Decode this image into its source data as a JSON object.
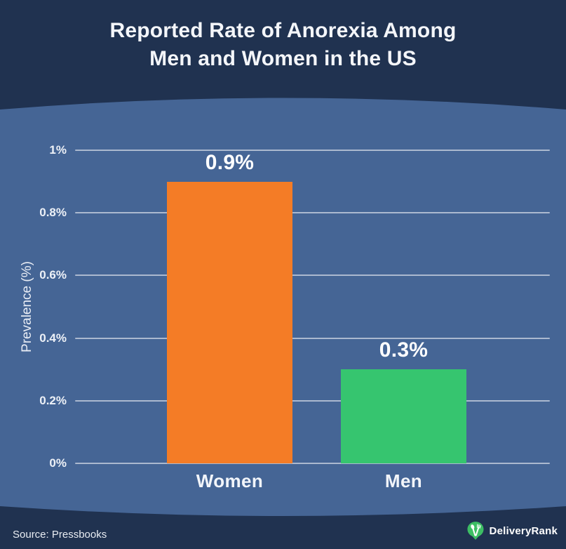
{
  "title": {
    "line1": "Reported Rate of Anorexia Among",
    "line2": "Men and Women in the US"
  },
  "source": "Source: Pressbooks",
  "logo": {
    "brand": "DeliveryRank",
    "icon": "fork-spoon-pin-icon",
    "icon_color": "#3DBE64"
  },
  "colors": {
    "header_footer_navy": "#203250",
    "body_blue": "#456595",
    "gridline": "rgba(255,255,255,0.55)",
    "text_light": "#F4F6FA"
  },
  "chart_data": {
    "type": "bar",
    "title": "Reported Rate of Anorexia Among Men and Women in the US",
    "categories": [
      "Women",
      "Men"
    ],
    "values": [
      0.9,
      0.3
    ],
    "bar_labels": [
      "0.9%",
      "0.3%"
    ],
    "bar_colors": [
      "#F47C26",
      "#36C56F"
    ],
    "xlabel": "",
    "ylabel": "Prevalence (%)",
    "ylim": [
      0,
      1
    ],
    "yticks": [
      {
        "value": 0,
        "label": "0%"
      },
      {
        "value": 0.2,
        "label": "0.2%"
      },
      {
        "value": 0.4,
        "label": "0.4%"
      },
      {
        "value": 0.6,
        "label": "0.6%"
      },
      {
        "value": 0.8,
        "label": "0.8%"
      },
      {
        "value": 1,
        "label": "1%"
      }
    ],
    "grid": true,
    "legend": false
  }
}
